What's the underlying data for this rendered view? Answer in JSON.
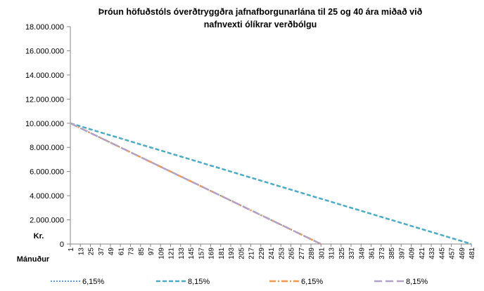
{
  "chart_data": {
    "type": "line",
    "title_lines": [
      "Þróun höfuðstóls óverðtryggðra jafnafborgunarlána til 25 og 40 ára miðað við",
      "nafnvexti ólíkrar verðbólgu"
    ],
    "xlabel": "Mánuður",
    "ylabel": "Kr.",
    "ylim": [
      0,
      18000000
    ],
    "xlim": [
      1,
      481
    ],
    "y_ticks": [
      0,
      2000000,
      4000000,
      6000000,
      8000000,
      10000000,
      12000000,
      14000000,
      16000000,
      18000000
    ],
    "y_tick_labels": [
      "0",
      "2.000.000",
      "4.000.000",
      "6.000.000",
      "8.000.000",
      "10.000.000",
      "12.000.000",
      "14.000.000",
      "16.000.000",
      "18.000.000"
    ],
    "x_ticks": [
      1,
      13,
      25,
      37,
      49,
      61,
      73,
      85,
      97,
      109,
      121,
      133,
      145,
      157,
      169,
      181,
      193,
      205,
      217,
      229,
      241,
      253,
      265,
      277,
      289,
      301,
      313,
      325,
      337,
      349,
      361,
      373,
      385,
      397,
      409,
      421,
      433,
      445,
      457,
      469,
      481
    ],
    "grid": false,
    "legend_position": "bottom",
    "series": [
      {
        "name": "6,15%",
        "color": "#5b9bd5",
        "style": "dotted",
        "x": [
          1,
          301
        ],
        "y": [
          10000000,
          0
        ]
      },
      {
        "name": "8,15%",
        "color": "#4bacc6",
        "style": "dashed",
        "x": [
          1,
          481
        ],
        "y": [
          10000000,
          0
        ]
      },
      {
        "name": "6,15%",
        "color": "#f79646",
        "style": "dashdot",
        "x": [
          1,
          301
        ],
        "y": [
          10000000,
          0
        ]
      },
      {
        "name": "8,15%",
        "color": "#b3a2c7",
        "style": "longdash",
        "x": [
          1,
          301
        ],
        "y": [
          10000000,
          0
        ]
      }
    ]
  }
}
